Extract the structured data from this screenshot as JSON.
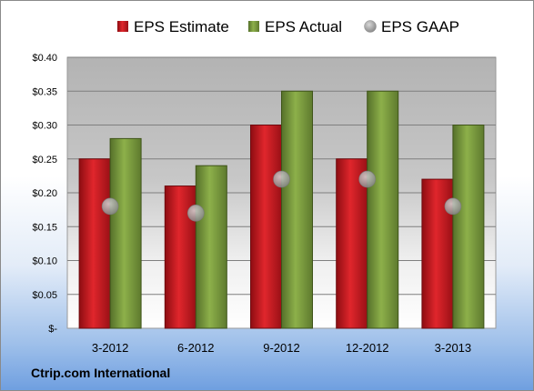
{
  "company_label": "Ctrip.com International",
  "chart_data": {
    "type": "bar",
    "categories": [
      "3-2012",
      "6-2012",
      "9-2012",
      "12-2012",
      "3-2013"
    ],
    "series": [
      {
        "name": "EPS Estimate",
        "kind": "bar",
        "color": "#c8141b",
        "values": [
          0.25,
          0.21,
          0.3,
          0.25,
          0.22
        ]
      },
      {
        "name": "EPS Actual",
        "kind": "bar",
        "color": "#7a9a3a",
        "values": [
          0.28,
          0.24,
          0.35,
          0.35,
          0.3
        ]
      },
      {
        "name": "EPS GAAP",
        "kind": "point",
        "color": "#a9a9a9",
        "values": [
          0.18,
          0.17,
          0.22,
          0.22,
          0.18
        ]
      }
    ],
    "ylim": [
      0,
      0.4
    ],
    "yticks": [
      0,
      0.05,
      0.1,
      0.15,
      0.2,
      0.25,
      0.3,
      0.35,
      0.4
    ],
    "ytick_labels": [
      "$-",
      "$0.05",
      "$0.10",
      "$0.15",
      "$0.20",
      "$0.25",
      "$0.30",
      "$0.35",
      "$0.40"
    ],
    "grid": true,
    "legend_position": "top"
  }
}
